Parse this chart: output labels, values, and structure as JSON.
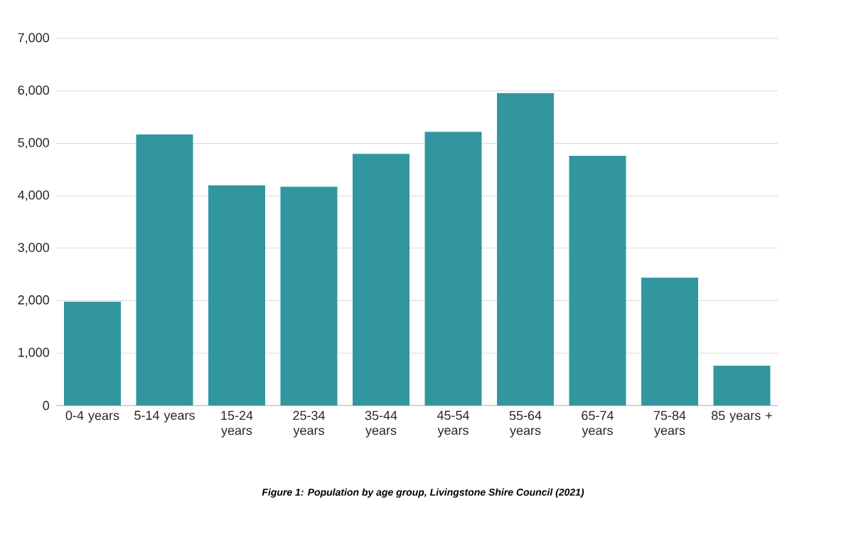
{
  "chart_data": {
    "type": "bar",
    "categories": [
      "0-4 years",
      "5-14 years",
      "15-24 years",
      "25-34 years",
      "35-44 years",
      "45-54 years",
      "55-64 years",
      "65-74 years",
      "75-84 years",
      "85 years +"
    ],
    "values": [
      1980,
      5170,
      4200,
      4170,
      4800,
      5220,
      5960,
      4760,
      2440,
      760
    ],
    "color": "#3196a0",
    "ylim": [
      0,
      7000
    ],
    "yticks": [
      {
        "value": 0,
        "label": "0"
      },
      {
        "value": 1000,
        "label": "1,000"
      },
      {
        "value": 2000,
        "label": "2,000"
      },
      {
        "value": 3000,
        "label": "3,000"
      },
      {
        "value": 4000,
        "label": "4,000"
      },
      {
        "value": 5000,
        "label": "5,000"
      },
      {
        "value": 6000,
        "label": "6,000"
      },
      {
        "value": 7000,
        "label": "7,000"
      }
    ],
    "grid": "y",
    "annotations": [
      "Figure 1: Population by age group, Livingstone Shire Council (2021)"
    ]
  }
}
